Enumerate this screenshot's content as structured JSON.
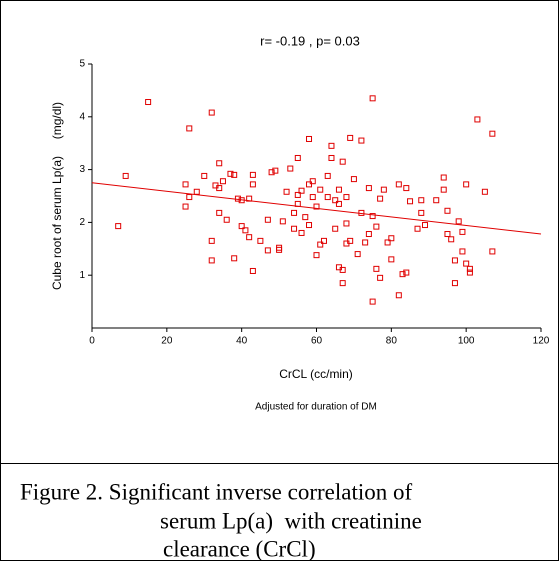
{
  "chart_data": {
    "type": "scatter",
    "title": "r= -0.19 , p= 0.03",
    "x_label": "CrCL  (cc/min)",
    "y_label": "Cube root of serum Lp(a)     (mg/dl)",
    "note": "Adjusted for duration of DM",
    "color": "#e00000",
    "xlim": [
      0,
      120
    ],
    "xticks": [
      0,
      20,
      40,
      60,
      80,
      100,
      120
    ],
    "ylim": [
      0,
      5
    ],
    "yticks": [
      1,
      2,
      3,
      4,
      5
    ],
    "x": [
      7,
      9,
      15,
      25,
      25,
      26,
      26,
      28,
      30,
      32,
      32,
      32,
      33,
      34,
      34,
      34,
      35,
      36,
      37,
      38,
      38,
      39,
      40,
      40,
      41,
      42,
      42,
      43,
      43,
      43,
      45,
      47,
      47,
      48,
      49,
      50,
      50,
      51,
      52,
      53,
      54,
      54,
      55,
      55,
      55,
      56,
      56,
      57,
      58,
      58,
      58,
      59,
      59,
      60,
      60,
      61,
      61,
      62,
      63,
      63,
      64,
      64,
      65,
      65,
      66,
      66,
      66,
      67,
      67,
      67,
      68,
      68,
      68,
      69,
      69,
      70,
      71,
      72,
      72,
      73,
      74,
      74,
      75,
      75,
      75,
      76,
      76,
      77,
      77,
      78,
      79,
      80,
      80,
      82,
      82,
      83,
      84,
      84,
      85,
      87,
      88,
      88,
      89,
      92,
      94,
      94,
      95,
      95,
      96,
      97,
      97,
      98,
      99,
      99,
      100,
      100,
      101,
      101,
      103,
      105,
      107,
      107
    ],
    "values": [
      1.93,
      2.88,
      4.28,
      2.72,
      2.3,
      2.48,
      3.78,
      2.58,
      2.88,
      4.08,
      1.65,
      1.28,
      2.7,
      2.65,
      3.12,
      2.18,
      2.78,
      2.05,
      2.92,
      2.9,
      1.32,
      2.45,
      2.42,
      1.93,
      1.85,
      1.72,
      2.45,
      2.9,
      2.72,
      1.08,
      1.65,
      2.05,
      1.47,
      2.95,
      2.98,
      1.52,
      1.48,
      2.02,
      2.58,
      3.02,
      2.18,
      1.88,
      2.52,
      2.35,
      3.22,
      2.6,
      1.8,
      2.1,
      2.72,
      3.58,
      1.95,
      2.48,
      2.78,
      1.38,
      2.3,
      2.62,
      1.58,
      1.65,
      2.48,
      2.88,
      3.22,
      3.45,
      2.42,
      1.88,
      2.62,
      2.35,
      1.15,
      3.15,
      0.85,
      1.1,
      2.48,
      1.6,
      1.98,
      1.65,
      3.6,
      2.82,
      1.4,
      2.18,
      3.55,
      1.62,
      2.65,
      1.78,
      4.35,
      0.5,
      2.12,
      1.92,
      1.12,
      2.45,
      0.95,
      2.62,
      1.62,
      1.7,
      1.3,
      0.62,
      2.72,
      1.02,
      2.65,
      1.05,
      2.4,
      1.88,
      2.42,
      2.18,
      1.95,
      2.42,
      2.85,
      2.62,
      2.22,
      1.78,
      1.68,
      1.28,
      0.85,
      2.02,
      1.82,
      1.45,
      2.72,
      1.22,
      1.05,
      1.12,
      3.95,
      2.58,
      1.45,
      3.68
    ],
    "fit_line": {
      "x": [
        0,
        120
      ],
      "values": [
        2.75,
        1.78
      ]
    }
  },
  "caption": [
    "Figure 2. Significant inverse correlation of",
    "serum Lp(a)  with creatinine",
    "clearance (CrCl)"
  ]
}
